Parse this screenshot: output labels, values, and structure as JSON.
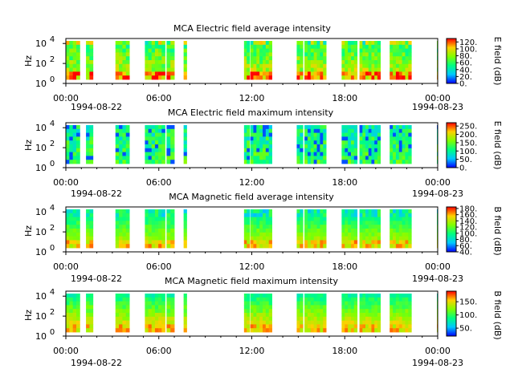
{
  "chart_data": [
    {
      "type": "heatmap",
      "title": "MCA  Electric field average intensity",
      "ylabel": "Hz",
      "y_ticks": [
        "10",
        "10",
        "10"
      ],
      "y_tick_exponents": [
        "0",
        "2",
        "4"
      ],
      "y_scale": "log",
      "ylim": [
        1,
        30000
      ],
      "x_ticks": [
        "00:00",
        "06:00",
        "12:00",
        "18:00",
        "00:00"
      ],
      "x_date_labels": [
        "1994-08-22",
        "1994-08-23"
      ],
      "colorbar_label": "E field (dB)",
      "colorbar_ticks": [
        "0.",
        "20.",
        "40.",
        "60.",
        "80.",
        "100.",
        "120."
      ],
      "colorbar_range": [
        0,
        130
      ],
      "style": "avg_e"
    },
    {
      "type": "heatmap",
      "title": "MCA  Electric field maximum intensity",
      "ylabel": "Hz",
      "y_ticks": [
        "10",
        "10",
        "10"
      ],
      "y_tick_exponents": [
        "0",
        "2",
        "4"
      ],
      "y_scale": "log",
      "ylim": [
        1,
        30000
      ],
      "x_ticks": [
        "00:00",
        "06:00",
        "12:00",
        "18:00",
        "00:00"
      ],
      "x_date_labels": [
        "1994-08-22",
        "1994-08-23"
      ],
      "colorbar_label": "E field (dB)",
      "colorbar_ticks": [
        "0.",
        "50.",
        "100.",
        "150.",
        "200.",
        "250."
      ],
      "colorbar_range": [
        0,
        270
      ],
      "style": "max_e"
    },
    {
      "type": "heatmap",
      "title": "MCA  Magnetic field average intensity",
      "ylabel": "Hz",
      "y_ticks": [
        "10",
        "10",
        "10"
      ],
      "y_tick_exponents": [
        "0",
        "2",
        "4"
      ],
      "y_scale": "log",
      "ylim": [
        1,
        30000
      ],
      "x_ticks": [
        "00:00",
        "06:00",
        "12:00",
        "18:00",
        "00:00"
      ],
      "x_date_labels": [
        "1994-08-22",
        "1994-08-23"
      ],
      "colorbar_label": "B field (dB)",
      "colorbar_ticks": [
        "40.",
        "60.",
        "80.",
        "100.",
        "120.",
        "140.",
        "160.",
        "180."
      ],
      "colorbar_range": [
        40,
        185
      ],
      "style": "avg_b"
    },
    {
      "type": "heatmap",
      "title": "MCA  Magnetic field maximum intensity",
      "ylabel": "Hz",
      "y_ticks": [
        "10",
        "10",
        "10"
      ],
      "y_tick_exponents": [
        "0",
        "2",
        "4"
      ],
      "y_scale": "log",
      "ylim": [
        1,
        30000
      ],
      "x_ticks": [
        "00:00",
        "06:00",
        "12:00",
        "18:00",
        "00:00"
      ],
      "x_date_labels": [
        "1994-08-22",
        "1994-08-23"
      ],
      "colorbar_label": "B field (dB)",
      "colorbar_ticks": [
        "50.",
        "100.",
        "150."
      ],
      "colorbar_range": [
        20,
        190
      ],
      "style": "max_b"
    }
  ],
  "time_axis": {
    "start_hour": 0,
    "end_hour": 24,
    "data_hour_ranges": [
      [
        0,
        0.9
      ],
      [
        1.3,
        1.75
      ],
      [
        3.2,
        4.1
      ],
      [
        5.1,
        6.4
      ],
      [
        6.5,
        7.0
      ],
      [
        7.6,
        7.8
      ],
      [
        11.5,
        11.85
      ],
      [
        11.9,
        13.3
      ],
      [
        14.9,
        15.3
      ],
      [
        15.4,
        16.8
      ],
      [
        17.8,
        18.8
      ],
      [
        18.95,
        20.3
      ],
      [
        20.9,
        22.3
      ],
      [
        23.95,
        24.0
      ]
    ]
  }
}
